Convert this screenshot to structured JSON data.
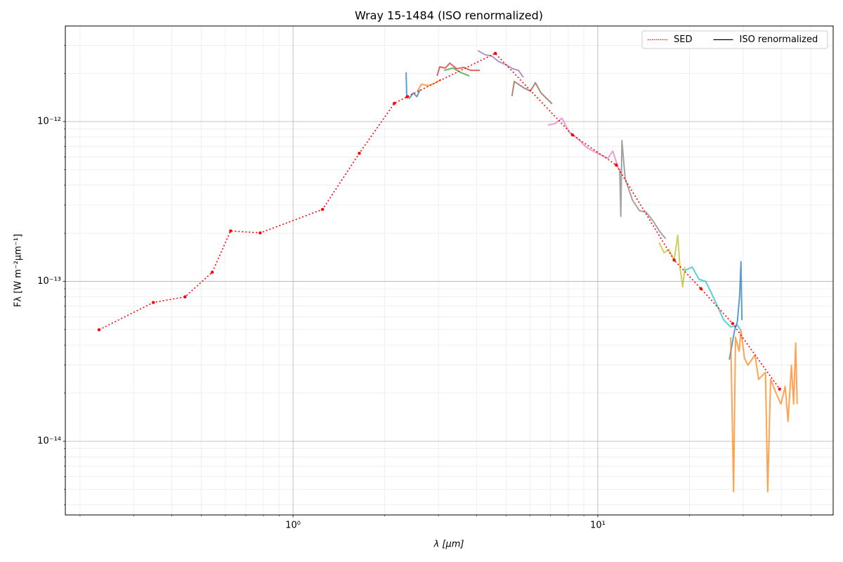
{
  "chart_data": {
    "type": "line",
    "title": "Wray 15-1484 (ISO renormalized)",
    "xlabel": "λ [μm]",
    "ylabel": "Fλ [W m⁻²μm⁻¹]",
    "xscale": "log",
    "yscale": "log",
    "grid": true,
    "legend": "upper right",
    "xlim": [
      0.179,
      59.2
    ],
    "ylim": [
      3.46e-15,
      3.96e-12
    ],
    "xticks": [
      {
        "value": 1,
        "label": "10⁰"
      },
      {
        "value": 10,
        "label": "10¹"
      }
    ],
    "yticks": [
      {
        "value": 1e-14,
        "label": "10⁻¹⁴"
      },
      {
        "value": 1e-13,
        "label": "10⁻¹³"
      },
      {
        "value": 1e-12,
        "label": "10⁻¹²"
      }
    ],
    "xminorticks": [
      0.2,
      0.3,
      0.4,
      0.5,
      0.6,
      0.7,
      0.8,
      0.9,
      2,
      3,
      4,
      5,
      6,
      7,
      8,
      9,
      20,
      30,
      40,
      50
    ],
    "yminorticks": [
      4e-15,
      5e-15,
      6e-15,
      7e-15,
      8e-15,
      9e-15,
      2e-14,
      3e-14,
      4e-14,
      5e-14,
      6e-14,
      7e-14,
      8e-14,
      9e-14,
      2e-13,
      3e-13,
      4e-13,
      5e-13,
      6e-13,
      7e-13,
      8e-13,
      9e-13,
      2e-12,
      3e-12
    ],
    "series": [
      {
        "name": "SED",
        "color": "#ff0000",
        "linestyle": "dotted",
        "marker": true,
        "x": [
          0.231,
          0.348,
          0.442,
          0.543,
          0.624,
          0.78,
          1.25,
          1.65,
          2.15,
          2.37,
          4.61,
          8.26,
          11.5,
          17.8,
          21.8,
          27.7,
          39.5
        ],
        "values": [
          4.98e-14,
          7.38e-14,
          8e-14,
          1.14e-13,
          2.07e-13,
          2.01e-13,
          2.82e-13,
          6.33e-13,
          1.3e-12,
          1.43e-12,
          2.67e-12,
          8.25e-13,
          5.34e-13,
          1.36e-13,
          9e-14,
          5.45e-14,
          2.12e-14
        ]
      },
      {
        "name": "ISO renormalized",
        "color": "#000000",
        "linestyle": "solid",
        "segments": [
          {
            "color": "#1f77b4",
            "x": [
              2.35,
              2.36,
              2.41,
              2.48,
              2.55,
              2.61
            ],
            "values": [
              2.03e-12,
              1.47e-12,
              1.4e-12,
              1.51e-12,
              1.43e-12,
              1.58e-12
            ]
          },
          {
            "color": "#ff7f0e",
            "x": [
              2.56,
              2.64,
              2.79,
              2.94,
              3.06
            ],
            "values": [
              1.55e-12,
              1.71e-12,
              1.68e-12,
              1.75e-12,
              1.84e-12
            ]
          },
          {
            "color": "#d62728",
            "x": [
              2.97,
              3.03,
              3.16,
              3.27,
              3.44,
              3.63,
              3.83,
              4.1
            ],
            "values": [
              1.93e-12,
              2.2e-12,
              2.16e-12,
              2.32e-12,
              2.14e-12,
              2.18e-12,
              2.09e-12,
              2.09e-12
            ]
          },
          {
            "color": "#2ca02c",
            "x": [
              3.13,
              3.35,
              3.54,
              3.79
            ],
            "values": [
              2.09e-12,
              2.16e-12,
              2.03e-12,
              1.93e-12
            ]
          },
          {
            "color": "#9467bd",
            "x": [
              4.04,
              4.26,
              4.49,
              4.73,
              4.99,
              5.26,
              5.49,
              5.7
            ],
            "values": [
              2.78e-12,
              2.62e-12,
              2.57e-12,
              2.37e-12,
              2.27e-12,
              2.14e-12,
              2.09e-12,
              1.89e-12
            ]
          },
          {
            "color": "#8c564b",
            "x": [
              5.23,
              5.32,
              5.7,
              6.01,
              6.24,
              6.51,
              7.08
            ],
            "values": [
              1.44e-12,
              1.78e-12,
              1.63e-12,
              1.55e-12,
              1.75e-12,
              1.51e-12,
              1.29e-12
            ]
          },
          {
            "color": "#e377c2",
            "x": [
              6.86,
              7.24,
              7.63,
              8.05,
              8.48,
              9.19,
              9.95,
              10.8,
              11.2,
              11.7
            ],
            "values": [
              9.51e-13,
              9.71e-13,
              1.05e-12,
              8.59e-13,
              8e-13,
              6.88e-13,
              6.34e-13,
              5.9e-13,
              6.53e-13,
              5.07e-13
            ]
          },
          {
            "color": "#7f7f7f",
            "x": [
              11.8,
              11.9,
              12.0,
              12.3,
              13.0,
              13.7,
              14.4,
              15.2,
              16.0,
              16.7
            ],
            "values": [
              5.07e-13,
              2.55e-13,
              7.61e-13,
              4.37e-13,
              3.22e-13,
              2.77e-13,
              2.71e-13,
              2.38e-13,
              2.04e-13,
              1.85e-13
            ]
          },
          {
            "color": "#bcbd22",
            "x": [
              15.9,
              16.5,
              17.1,
              17.8,
              18.3,
              18.6,
              19.0,
              19.3
            ],
            "values": [
              1.75e-13,
              1.51e-13,
              1.58e-13,
              1.36e-13,
              1.94e-13,
              1.23e-13,
              9.23e-14,
              1.23e-13
            ]
          },
          {
            "color": "#17becf",
            "x": [
              19.3,
              20.4,
              21.5,
              22.6,
              23.5,
              24.5,
              25.9,
              27.3,
              28.7,
              29.5
            ],
            "values": [
              1.17e-13,
              1.23e-13,
              1.03e-13,
              1e-13,
              8.59e-14,
              7.23e-14,
              5.73e-14,
              5.18e-14,
              5.33e-14,
              4.92e-14
            ]
          },
          {
            "color": "#1f77b4",
            "x": [
              27.0,
              27.4,
              28.1,
              28.7,
              29.2,
              29.5,
              29.7
            ],
            "values": [
              3.24e-14,
              3.77e-14,
              4.92e-14,
              5.58e-14,
              8.16e-14,
              1.33e-13,
              5.73e-14
            ]
          },
          {
            "color": "#ff7f0e",
            "x": [
              27.3,
              27.9,
              28.3,
              29.1,
              29.5,
              30.3,
              31.1,
              32.8,
              33.7,
              35.5,
              36.1,
              36.9,
              38.5,
              39.9,
              41.2,
              42.1,
              43.2,
              43.9,
              44.6,
              45.1
            ],
            "values": [
              4.48e-14,
              4.83e-15,
              4.48e-14,
              3.66e-14,
              4.92e-14,
              3.3e-14,
              2.99e-14,
              3.47e-14,
              2.44e-14,
              2.7e-14,
              4.83e-15,
              2.44e-14,
              1.99e-14,
              1.71e-14,
              2.2e-14,
              1.33e-14,
              2.99e-14,
              1.71e-14,
              4.12e-14,
              1.71e-14
            ]
          }
        ]
      }
    ]
  }
}
